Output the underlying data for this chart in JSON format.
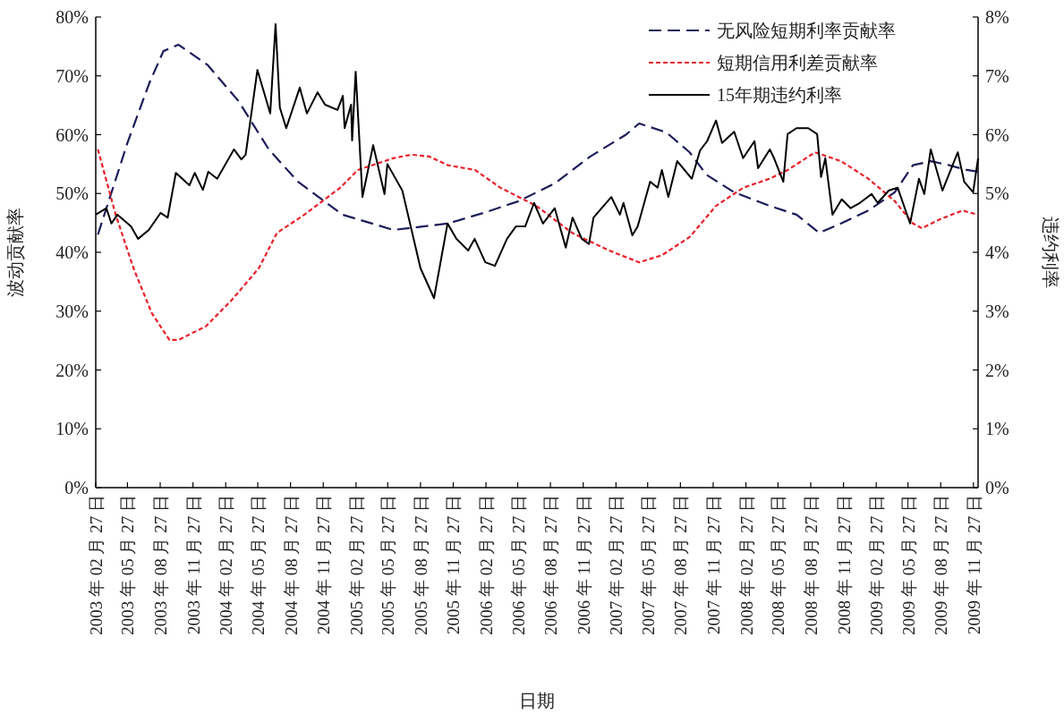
{
  "chart_data": {
    "type": "line",
    "xlabel": "日期",
    "ylabel": "波动贡献率",
    "y2label": "违约利率",
    "legend": "top right",
    "grid": false,
    "xlim": [
      "2003-02-27",
      "2009-12-10"
    ],
    "xticks": [
      {
        "value": "2003-02-27",
        "label": "2003 年 02 月 27 日"
      },
      {
        "value": "2003-05-27",
        "label": "2003 年 05 月 27 日"
      },
      {
        "value": "2003-08-27",
        "label": "2003 年 08 月 27 日"
      },
      {
        "value": "2003-11-27",
        "label": "2003 年 11 月 27 日"
      },
      {
        "value": "2004-02-27",
        "label": "2004 年 02 月 27 日"
      },
      {
        "value": "2004-05-27",
        "label": "2004 年 05 月 27 日"
      },
      {
        "value": "2004-08-27",
        "label": "2004 年 08 月 27 日"
      },
      {
        "value": "2004-11-27",
        "label": "2004 年 11 月 27 日"
      },
      {
        "value": "2005-02-27",
        "label": "2005 年 02 月 27 日"
      },
      {
        "value": "2005-05-27",
        "label": "2005 年 05 月 27 日"
      },
      {
        "value": "2005-08-27",
        "label": "2005 年 08 月 27 日"
      },
      {
        "value": "2005-11-27",
        "label": "2005 年 11 月 27 日"
      },
      {
        "value": "2006-02-27",
        "label": "2006 年 02 月 27 日"
      },
      {
        "value": "2006-05-27",
        "label": "2006 年 05 月 27 日"
      },
      {
        "value": "2006-08-27",
        "label": "2006 年 08 月 27 日"
      },
      {
        "value": "2006-11-27",
        "label": "2006 年 11 月 27 日"
      },
      {
        "value": "2007-02-27",
        "label": "2007 年 02 月 27 日"
      },
      {
        "value": "2007-05-27",
        "label": "2007 年 05 月 27 日"
      },
      {
        "value": "2007-08-27",
        "label": "2007 年 08 月 27 日"
      },
      {
        "value": "2007-11-27",
        "label": "2007 年 11 月 27 日"
      },
      {
        "value": "2008-02-27",
        "label": "2008 年 02 月 27 日"
      },
      {
        "value": "2008-05-27",
        "label": "2008 年 05 月 27 日"
      },
      {
        "value": "2008-08-27",
        "label": "2008 年 08 月 27 日"
      },
      {
        "value": "2008-11-27",
        "label": "2008 年 11 月 27 日"
      },
      {
        "value": "2009-02-27",
        "label": "2009 年 02 月 27 日"
      },
      {
        "value": "2009-05-27",
        "label": "2009 年 05 月 27 日"
      },
      {
        "value": "2009-08-27",
        "label": "2009 年 08 月 27 日"
      },
      {
        "value": "2009-11-27",
        "label": "2009 年 11 月 27 日"
      }
    ],
    "ylim": [
      0,
      80
    ],
    "yticks": [
      {
        "value": 0,
        "label": "0%"
      },
      {
        "value": 10,
        "label": "10%"
      },
      {
        "value": 20,
        "label": "20%"
      },
      {
        "value": 30,
        "label": "30%"
      },
      {
        "value": 40,
        "label": "40%"
      },
      {
        "value": 50,
        "label": "50%"
      },
      {
        "value": 60,
        "label": "60%"
      },
      {
        "value": 70,
        "label": "70%"
      },
      {
        "value": 80,
        "label": "80%"
      }
    ],
    "y2lim": [
      0,
      8
    ],
    "y2ticks": [
      {
        "value": 0,
        "label": "0%"
      },
      {
        "value": 1,
        "label": "1%"
      },
      {
        "value": 2,
        "label": "2%"
      },
      {
        "value": 3,
        "label": "3%"
      },
      {
        "value": 4,
        "label": "4%"
      },
      {
        "value": 5,
        "label": "5%"
      },
      {
        "value": 6,
        "label": "6%"
      },
      {
        "value": 7,
        "label": "7%"
      },
      {
        "value": 8,
        "label": "8%"
      }
    ],
    "series": [
      {
        "name": "无风险短期利率贡献率",
        "color": "#1c1c5a",
        "line_style": "dashed",
        "x": [
          "2003-03-05",
          "2003-05-27",
          "2003-07-27",
          "2003-09-05",
          "2003-10-17",
          "2004-01-08",
          "2004-04-03",
          "2004-06-27",
          "2004-09-17",
          "2005-01-20",
          "2005-06-12",
          "2005-11-12",
          "2006-02-20",
          "2006-05-30",
          "2006-09-08",
          "2006-12-17",
          "2007-03-27",
          "2007-05-03",
          "2007-07-18",
          "2007-09-22",
          "2007-11-08",
          "2008-01-25",
          "2008-05-03",
          "2008-07-18",
          "2008-09-20",
          "2008-11-20",
          "2009-02-05",
          "2009-04-20",
          "2009-06-10",
          "2009-07-30",
          "2009-09-20",
          "2009-11-08",
          "2009-12-10"
        ],
        "values": [
          43.0,
          58.6,
          68.7,
          74.2,
          75.3,
          71.8,
          65.7,
          57.5,
          52.0,
          46.4,
          43.8,
          44.9,
          46.7,
          48.7,
          51.7,
          56.3,
          60.0,
          61.9,
          60.4,
          57.0,
          53.2,
          50.2,
          47.9,
          46.4,
          43.3,
          44.9,
          47.1,
          50.2,
          54.8,
          55.5,
          54.8,
          54.0,
          53.7
        ]
      },
      {
        "name": "短期信用利差贡献率",
        "color": "#e8202a",
        "line_style": "dotted",
        "x": [
          "2003-03-05",
          "2003-04-24",
          "2003-06-13",
          "2003-08-03",
          "2003-09-22",
          "2003-10-17",
          "2004-01-02",
          "2004-03-15",
          "2004-05-30",
          "2004-07-20",
          "2004-10-05",
          "2005-01-14",
          "2005-03-04",
          "2005-06-12",
          "2005-08-02",
          "2005-09-20",
          "2005-11-12",
          "2006-01-27",
          "2006-04-08",
          "2006-07-18",
          "2006-10-27",
          "2007-02-08",
          "2007-05-03",
          "2007-07-06",
          "2007-09-22",
          "2007-12-05",
          "2008-02-20",
          "2008-05-03",
          "2008-06-24",
          "2008-09-08",
          "2008-11-20",
          "2009-02-05",
          "2009-04-20",
          "2009-06-10",
          "2009-07-05",
          "2009-08-24",
          "2009-10-27",
          "2009-12-10"
        ],
        "values": [
          57.5,
          46.4,
          37.3,
          29.7,
          25.1,
          25.1,
          27.4,
          31.9,
          37.3,
          43.3,
          46.4,
          51.0,
          54.0,
          56.0,
          56.6,
          56.3,
          54.8,
          54.0,
          51.0,
          47.9,
          43.3,
          40.3,
          38.3,
          39.5,
          42.6,
          47.9,
          51.0,
          52.5,
          54.0,
          57.0,
          55.5,
          52.5,
          48.7,
          44.9,
          44.1,
          45.6,
          47.1,
          46.4
        ]
      },
      {
        "name": "15年期违约利率",
        "color": "#000000",
        "line_style": "solid",
        "axis": "y2",
        "x": [
          "2003-02-27",
          "2003-03-29",
          "2003-04-12",
          "2003-04-29",
          "2003-06-06",
          "2003-06-26",
          "2003-07-26",
          "2003-08-28",
          "2003-09-17",
          "2003-10-10",
          "2003-11-17",
          "2003-12-02",
          "2003-12-25",
          "2004-01-09",
          "2004-02-03",
          "2004-03-21",
          "2004-04-11",
          "2004-04-23",
          "2004-05-26",
          "2004-07-01",
          "2004-07-16",
          "2004-07-28",
          "2004-08-15",
          "2004-09-22",
          "2004-10-12",
          "2004-11-11",
          "2004-12-02",
          "2005-01-06",
          "2005-01-21",
          "2005-01-26",
          "2005-02-13",
          "2005-02-16",
          "2005-02-26",
          "2005-03-17",
          "2005-04-16",
          "2005-05-18",
          "2005-05-26",
          "2005-07-07",
          "2005-08-27",
          "2005-10-04",
          "2005-11-11",
          "2005-12-06",
          "2006-01-08",
          "2006-01-26",
          "2006-02-25",
          "2006-03-24",
          "2006-04-27",
          "2006-05-22",
          "2006-06-17",
          "2006-07-12",
          "2006-08-06",
          "2006-09-08",
          "2006-10-09",
          "2006-10-28",
          "2006-11-23",
          "2006-12-13",
          "2006-12-26",
          "2007-02-14",
          "2007-03-10",
          "2007-03-20",
          "2007-04-14",
          "2007-04-29",
          "2007-06-03",
          "2007-06-24",
          "2007-07-06",
          "2007-07-24",
          "2007-08-18",
          "2007-09-28",
          "2007-10-21",
          "2007-11-10",
          "2007-12-05",
          "2007-12-22",
          "2008-01-25",
          "2008-02-19",
          "2008-03-22",
          "2008-04-01",
          "2008-05-04",
          "2008-05-16",
          "2008-06-11",
          "2008-06-23",
          "2008-07-18",
          "2008-08-20",
          "2008-09-14",
          "2008-09-25",
          "2008-10-07",
          "2008-10-27",
          "2008-11-22",
          "2008-12-17",
          "2009-01-12",
          "2009-02-14",
          "2009-03-03",
          "2009-04-03",
          "2009-04-28",
          "2009-06-02",
          "2009-06-27",
          "2009-07-12",
          "2009-07-30",
          "2009-09-01",
          "2009-10-14",
          "2009-11-01",
          "2009-11-26",
          "2009-12-10"
        ],
        "values": [
          4.64,
          4.75,
          4.49,
          4.64,
          4.44,
          4.23,
          4.38,
          4.67,
          4.59,
          5.35,
          5.14,
          5.35,
          5.06,
          5.37,
          5.25,
          5.75,
          5.58,
          5.66,
          7.1,
          6.36,
          7.88,
          6.46,
          6.11,
          6.8,
          6.36,
          6.72,
          6.51,
          6.42,
          6.66,
          6.11,
          6.51,
          5.9,
          7.07,
          4.94,
          5.82,
          4.99,
          5.5,
          5.05,
          3.73,
          3.22,
          4.49,
          4.23,
          4.03,
          4.23,
          3.83,
          3.77,
          4.23,
          4.44,
          4.44,
          4.84,
          4.49,
          4.75,
          4.08,
          4.59,
          4.23,
          4.14,
          4.59,
          4.94,
          4.64,
          4.84,
          4.29,
          4.44,
          5.2,
          5.1,
          5.4,
          4.94,
          5.55,
          5.25,
          5.73,
          5.89,
          6.24,
          5.86,
          6.05,
          5.6,
          5.89,
          5.43,
          5.75,
          5.6,
          5.2,
          6.01,
          6.11,
          6.11,
          6.01,
          5.28,
          5.6,
          4.64,
          4.9,
          4.75,
          4.84,
          4.99,
          4.84,
          5.05,
          5.1,
          4.49,
          5.25,
          4.99,
          5.75,
          5.05,
          5.7,
          5.2,
          5.02,
          5.6
        ]
      }
    ]
  }
}
